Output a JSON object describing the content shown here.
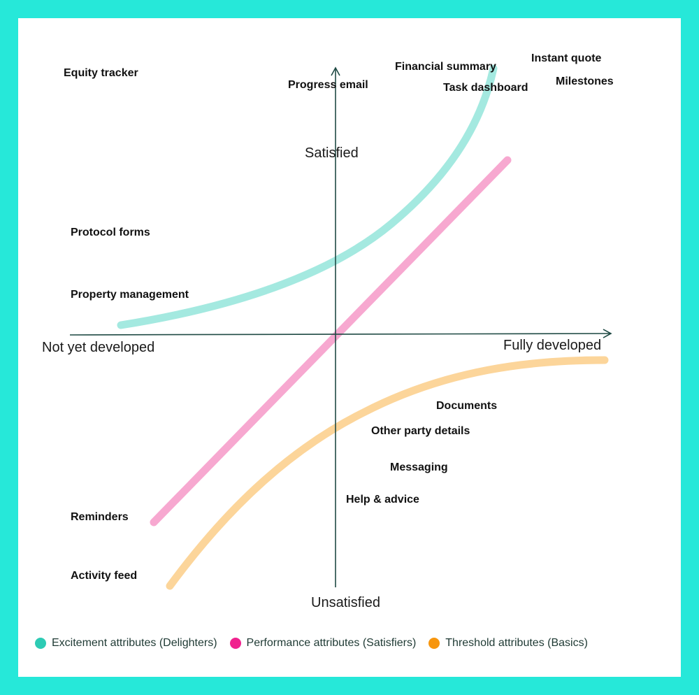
{
  "axes": {
    "top": "Satisfied",
    "bottom": "Unsatisfied",
    "left": "Not yet developed",
    "right": "Fully developed"
  },
  "features": {
    "equity_tracker": "Equity tracker",
    "progress_email": "Progress email",
    "financial_summary": "Financial summary",
    "task_dashboard": "Task dashboard",
    "instant_quote": "Instant quote",
    "milestones": "Milestones",
    "protocol_forms": "Protocol forms",
    "property_management": "Property management",
    "documents": "Documents",
    "other_party_details": "Other party details",
    "messaging": "Messaging",
    "help_advice": "Help & advice",
    "reminders": "Reminders",
    "activity_feed": "Activity feed"
  },
  "legend": [
    {
      "label": "Excitement attributes (Delighters)",
      "color": "#2dcbb4"
    },
    {
      "label": "Performance attributes (Satisfiers)",
      "color": "#f0228e"
    },
    {
      "label": "Threshold attributes (Basics)",
      "color": "#f7960e"
    }
  ],
  "curve_colors": {
    "excitement": "#a4e9e0",
    "performance": "#f7a8d0",
    "threshold": "#fcd59a",
    "axis": "#1f4a44"
  }
}
